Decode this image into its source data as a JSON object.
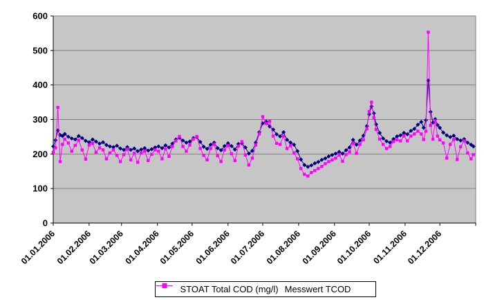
{
  "chart_data": {
    "type": "line",
    "title": "",
    "xlabel": "",
    "ylabel": "",
    "ylim": [
      0,
      600
    ],
    "xlim": [
      1,
      366
    ],
    "y_ticks": [
      0,
      100,
      200,
      300,
      400,
      500,
      600
    ],
    "x_ticks": [
      {
        "day": 1,
        "label": "01.01.2006"
      },
      {
        "day": 32,
        "label": "01.02.2006"
      },
      {
        "day": 60,
        "label": "01.03.2006"
      },
      {
        "day": 91,
        "label": "01.04.2006"
      },
      {
        "day": 121,
        "label": "01.05.2006"
      },
      {
        "day": 152,
        "label": "01.06.2006"
      },
      {
        "day": 182,
        "label": "01.07.2006"
      },
      {
        "day": 213,
        "label": "01.08.2006"
      },
      {
        "day": 244,
        "label": "01.09.2006"
      },
      {
        "day": 274,
        "label": "01.10.2006"
      },
      {
        "day": 305,
        "label": "01.11.2006"
      },
      {
        "day": 335,
        "label": "01.12.2006"
      }
    ],
    "grid": "horizontal",
    "legend_position": "bottom-center",
    "colors": {
      "plot_bg": "#c6c6c6",
      "grid": "#808080",
      "axis": "#000000",
      "page_bg": "#ffffff",
      "legend_border": "#000000"
    },
    "x_days": [
      1,
      3,
      5,
      7,
      9,
      11,
      14,
      17,
      20,
      23,
      26,
      29,
      32,
      35,
      38,
      41,
      44,
      47,
      50,
      53,
      56,
      59,
      62,
      65,
      68,
      71,
      74,
      77,
      80,
      83,
      86,
      89,
      92,
      95,
      98,
      101,
      104,
      107,
      110,
      113,
      116,
      119,
      122,
      125,
      128,
      131,
      134,
      137,
      140,
      143,
      146,
      149,
      152,
      155,
      158,
      161,
      164,
      167,
      170,
      173,
      176,
      179,
      182,
      185,
      188,
      191,
      194,
      197,
      200,
      203,
      206,
      209,
      212,
      215,
      218,
      221,
      224,
      227,
      230,
      233,
      236,
      239,
      242,
      245,
      248,
      251,
      254,
      257,
      260,
      263,
      266,
      269,
      272,
      274,
      276,
      278,
      280,
      283,
      286,
      289,
      292,
      295,
      298,
      301,
      304,
      307,
      310,
      313,
      316,
      319,
      321,
      323,
      325,
      327,
      329,
      331,
      333,
      335,
      338,
      341,
      344,
      347,
      350,
      353,
      356,
      359,
      362,
      364
    ],
    "series": [
      {
        "name": "STOAT Total COD (mg/l)",
        "color": "#000080",
        "marker": "diamond",
        "values": [
          222,
          240,
          268,
          255,
          252,
          258,
          250,
          245,
          242,
          252,
          246,
          238,
          234,
          242,
          236,
          230,
          234,
          226,
          222,
          220,
          224,
          216,
          212,
          220,
          212,
          216,
          208,
          213,
          217,
          210,
          214,
          219,
          222,
          217,
          225,
          219,
          230,
          242,
          247,
          239,
          233,
          236,
          246,
          249,
          235,
          221,
          215,
          227,
          233,
          217,
          211,
          223,
          231,
          223,
          213,
          229,
          231,
          219,
          201,
          209,
          233,
          263,
          289,
          294,
          280,
          271,
          257,
          251,
          263,
          241,
          233,
          227,
          208,
          184,
          168,
          163,
          167,
          173,
          177,
          183,
          187,
          193,
          197,
          201,
          206,
          201,
          211,
          219,
          241,
          227,
          239,
          253,
          281,
          315,
          338,
          318,
          286,
          261,
          245,
          237,
          233,
          243,
          251,
          254,
          261,
          257,
          267,
          273,
          285,
          293,
          276,
          298,
          413,
          322,
          291,
          301,
          284,
          276,
          262,
          254,
          249,
          253,
          243,
          239,
          243,
          233,
          227,
          222
        ]
      },
      {
        "name": "Messwert TCOD",
        "color": "#ff00ff",
        "marker": "square",
        "values": [
          205,
          218,
          335,
          178,
          228,
          243,
          232,
          208,
          225,
          240,
          212,
          185,
          226,
          231,
          205,
          218,
          212,
          186,
          203,
          212,
          196,
          178,
          198,
          214,
          183,
          202,
          176,
          203,
          208,
          181,
          199,
          212,
          208,
          186,
          215,
          193,
          222,
          238,
          251,
          222,
          208,
          226,
          243,
          251,
          216,
          196,
          183,
          216,
          228,
          195,
          178,
          212,
          224,
          201,
          181,
          223,
          236,
          197,
          168,
          188,
          226,
          258,
          308,
          288,
          295,
          252,
          231,
          228,
          252,
          216,
          224,
          203,
          186,
          158,
          141,
          136,
          146,
          152,
          158,
          164,
          172,
          178,
          183,
          188,
          197,
          179,
          198,
          206,
          232,
          202,
          228,
          241,
          273,
          323,
          350,
          305,
          271,
          243,
          228,
          216,
          222,
          236,
          241,
          238,
          252,
          238,
          252,
          258,
          266,
          258,
          242,
          266,
          553,
          283,
          243,
          296,
          252,
          241,
          232,
          188,
          228,
          242,
          184,
          221,
          238,
          203,
          186,
          198
        ]
      }
    ]
  }
}
